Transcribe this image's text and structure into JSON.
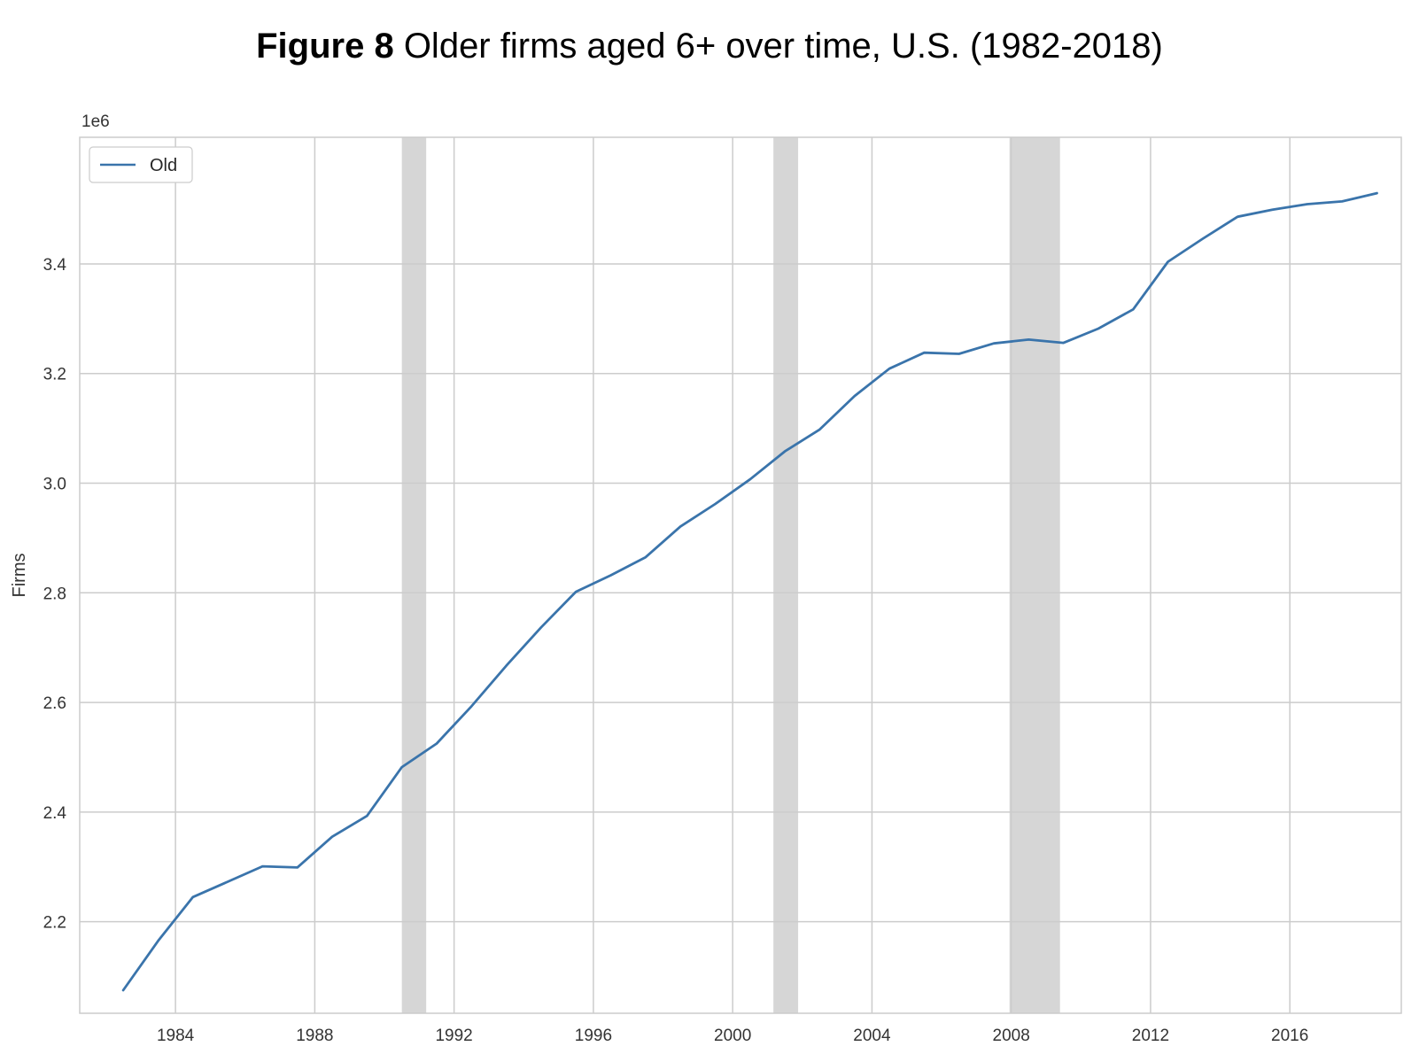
{
  "figure": {
    "title_lead": "Figure 8",
    "title_rest": " Older firms aged 6+ over time, U.S. (1982-2018)"
  },
  "chart_data": {
    "type": "line",
    "title": "Figure 8 Older firms aged 6+ over time, U.S. (1982-2018)",
    "xlabel": "",
    "ylabel": "Firms",
    "y_offset_label": "1e6",
    "x_ticks": [
      1984,
      1988,
      1992,
      1996,
      2000,
      2004,
      2008,
      2012,
      2016
    ],
    "x_tick_labels": [
      "1984",
      "1988",
      "1992",
      "1996",
      "2000",
      "2004",
      "2008",
      "2012",
      "2016"
    ],
    "y_ticks": [
      2.2,
      2.4,
      2.6,
      2.8,
      3.0,
      3.2,
      3.4
    ],
    "y_tick_labels": [
      "2.2",
      "2.4",
      "2.6",
      "2.8",
      "3.0",
      "3.2",
      "3.4"
    ],
    "xlim": [
      1981.25,
      2019.2
    ],
    "ylim": [
      2.033,
      3.631
    ],
    "grid": true,
    "legend_position": "top-left",
    "series": [
      {
        "name": "Old",
        "color": "#3a74ab",
        "x": [
          1982.5,
          1983.5,
          1984.5,
          1985.5,
          1986.5,
          1987.5,
          1988.5,
          1989.5,
          1990.5,
          1991.5,
          1992.5,
          1993.5,
          1994.5,
          1995.5,
          1996.5,
          1997.5,
          1998.5,
          1999.5,
          2000.5,
          2001.5,
          2002.5,
          2003.5,
          2004.5,
          2005.5,
          2006.5,
          2007.5,
          2008.5,
          2009.5,
          2010.5,
          2011.5,
          2012.5,
          2013.5,
          2014.5,
          2015.5,
          2016.5,
          2017.5,
          2018.5
        ],
        "y": [
          2.075,
          2.165,
          2.245,
          2.273,
          2.301,
          2.299,
          2.355,
          2.393,
          2.482,
          2.525,
          2.593,
          2.667,
          2.737,
          2.802,
          2.832,
          2.865,
          2.921,
          2.962,
          3.007,
          3.058,
          3.098,
          3.159,
          3.209,
          3.238,
          3.236,
          3.255,
          3.262,
          3.256,
          3.282,
          3.317,
          3.404,
          3.446,
          3.486,
          3.499,
          3.509,
          3.514,
          3.529
        ]
      }
    ],
    "shaded_periods": [
      {
        "start": 1990.5,
        "end": 1991.2
      },
      {
        "start": 2001.17,
        "end": 2001.88
      },
      {
        "start": 2007.95,
        "end": 2009.4
      }
    ],
    "shade_color": "#d6d6d6",
    "grid_color": "#cccccc"
  }
}
